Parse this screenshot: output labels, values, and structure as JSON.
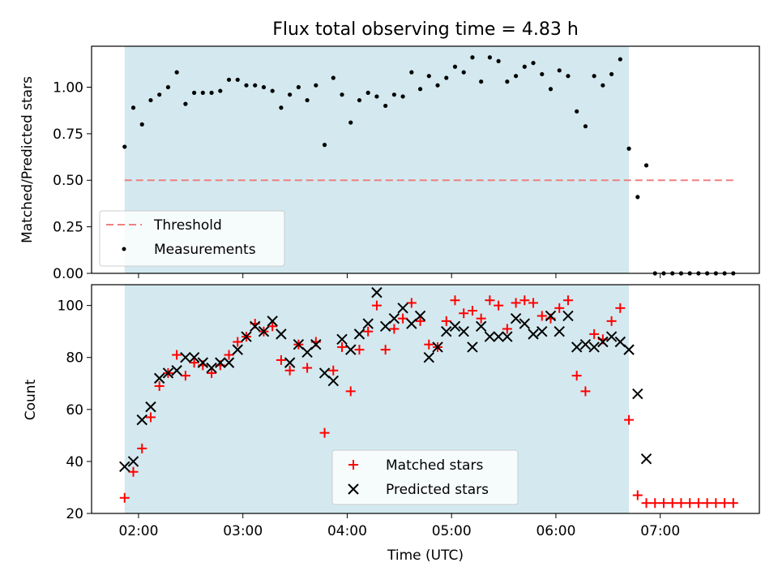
{
  "chart_data": [
    {
      "type": "scatter",
      "title": "Flux total observing time = 4.83 h",
      "xlabel": "",
      "ylabel": "Matched/Predicted stars",
      "ylim": [
        0,
        1.22
      ],
      "yticks": [
        "0.00",
        "0.25",
        "0.50",
        "0.75",
        "1.00"
      ],
      "shaded_region": {
        "from": "01:52",
        "to": "06:42",
        "color": "#d3e9ef"
      },
      "threshold": {
        "name": "Threshold",
        "value": 0.5,
        "from": "01:52",
        "to": "07:42",
        "color": "#f08080"
      },
      "legend_position": "lower-left",
      "series": [
        {
          "name": "Measurements",
          "marker": "dot",
          "color": "#000000",
          "points": [
            [
              "01:52",
              0.68
            ],
            [
              "01:57",
              0.89
            ],
            [
              "02:02",
              0.8
            ],
            [
              "02:07",
              0.93
            ],
            [
              "02:12",
              0.96
            ],
            [
              "02:17",
              1.0
            ],
            [
              "02:22",
              1.08
            ],
            [
              "02:27",
              0.91
            ],
            [
              "02:32",
              0.97
            ],
            [
              "02:37",
              0.97
            ],
            [
              "02:42",
              0.97
            ],
            [
              "02:47",
              0.98
            ],
            [
              "02:52",
              1.04
            ],
            [
              "02:57",
              1.04
            ],
            [
              "03:02",
              1.01
            ],
            [
              "03:07",
              1.01
            ],
            [
              "03:12",
              1.0
            ],
            [
              "03:17",
              0.98
            ],
            [
              "03:22",
              0.89
            ],
            [
              "03:27",
              0.96
            ],
            [
              "03:32",
              1.0
            ],
            [
              "03:37",
              0.93
            ],
            [
              "03:42",
              1.01
            ],
            [
              "03:47",
              0.69
            ],
            [
              "03:52",
              1.05
            ],
            [
              "03:57",
              0.96
            ],
            [
              "04:02",
              0.81
            ],
            [
              "04:07",
              0.93
            ],
            [
              "04:12",
              0.97
            ],
            [
              "04:17",
              0.95
            ],
            [
              "04:22",
              0.9
            ],
            [
              "04:27",
              0.96
            ],
            [
              "04:32",
              0.95
            ],
            [
              "04:37",
              1.08
            ],
            [
              "04:42",
              0.99
            ],
            [
              "04:47",
              1.06
            ],
            [
              "04:52",
              1.01
            ],
            [
              "04:57",
              1.05
            ],
            [
              "05:02",
              1.11
            ],
            [
              "05:07",
              1.08
            ],
            [
              "05:12",
              1.16
            ],
            [
              "05:17",
              1.03
            ],
            [
              "05:22",
              1.16
            ],
            [
              "05:27",
              1.14
            ],
            [
              "05:32",
              1.03
            ],
            [
              "05:37",
              1.06
            ],
            [
              "05:42",
              1.11
            ],
            [
              "05:47",
              1.13
            ],
            [
              "05:52",
              1.07
            ],
            [
              "05:57",
              0.99
            ],
            [
              "06:02",
              1.09
            ],
            [
              "06:07",
              1.06
            ],
            [
              "06:12",
              0.87
            ],
            [
              "06:17",
              0.79
            ],
            [
              "06:22",
              1.06
            ],
            [
              "06:27",
              1.01
            ],
            [
              "06:32",
              1.07
            ],
            [
              "06:37",
              1.15
            ],
            [
              "06:42",
              0.67
            ],
            [
              "06:47",
              0.41
            ],
            [
              "06:52",
              0.58
            ],
            [
              "06:57",
              0.0
            ],
            [
              "07:02",
              0.0
            ],
            [
              "07:07",
              0.0
            ],
            [
              "07:12",
              0.0
            ],
            [
              "07:17",
              0.0
            ],
            [
              "07:22",
              0.0
            ],
            [
              "07:27",
              0.0
            ],
            [
              "07:32",
              0.0
            ],
            [
              "07:37",
              0.0
            ],
            [
              "07:42",
              0.0
            ]
          ]
        }
      ]
    },
    {
      "type": "scatter",
      "title": "",
      "xlabel": "Time (UTC)",
      "ylabel": "Count",
      "xlim": [
        "01:33",
        "07:57"
      ],
      "xticks": [
        "02:00",
        "03:00",
        "04:00",
        "05:00",
        "06:00",
        "07:00"
      ],
      "ylim": [
        20,
        108
      ],
      "yticks": [
        20,
        40,
        60,
        80,
        100
      ],
      "shaded_region": {
        "from": "01:52",
        "to": "06:42",
        "color": "#d3e9ef"
      },
      "legend_position": "lower-center",
      "x": [
        "01:52",
        "01:57",
        "02:02",
        "02:07",
        "02:12",
        "02:17",
        "02:22",
        "02:27",
        "02:32",
        "02:37",
        "02:42",
        "02:47",
        "02:52",
        "02:57",
        "03:02",
        "03:07",
        "03:12",
        "03:17",
        "03:22",
        "03:27",
        "03:32",
        "03:37",
        "03:42",
        "03:47",
        "03:52",
        "03:57",
        "04:02",
        "04:07",
        "04:12",
        "04:17",
        "04:22",
        "04:27",
        "04:32",
        "04:37",
        "04:42",
        "04:47",
        "04:52",
        "04:57",
        "05:02",
        "05:07",
        "05:12",
        "05:17",
        "05:22",
        "05:27",
        "05:32",
        "05:37",
        "05:42",
        "05:47",
        "05:52",
        "05:57",
        "06:02",
        "06:07",
        "06:12",
        "06:17",
        "06:22",
        "06:27",
        "06:32",
        "06:37",
        "06:42",
        "06:47",
        "06:52",
        "06:57",
        "07:02",
        "07:07",
        "07:12",
        "07:17",
        "07:22",
        "07:27",
        "07:32",
        "07:37",
        "07:42"
      ],
      "series": [
        {
          "name": "Matched stars",
          "marker": "plus",
          "color": "#ff0000",
          "values": [
            26,
            36,
            45,
            57,
            69,
            74,
            81,
            73,
            78,
            77,
            74,
            77,
            81,
            86,
            88,
            93,
            90,
            92,
            79,
            75,
            85,
            76,
            86,
            51,
            75,
            84,
            67,
            83,
            90,
            100,
            83,
            91,
            95,
            101,
            94,
            85,
            84,
            94,
            102,
            97,
            98,
            95,
            102,
            100,
            91,
            101,
            102,
            101,
            96,
            95,
            99,
            102,
            73,
            67,
            89,
            87,
            94,
            99,
            56,
            27,
            24,
            24,
            24,
            24,
            24,
            24,
            24,
            24,
            24,
            24,
            24
          ]
        },
        {
          "name": "Predicted stars",
          "marker": "x",
          "color": "#000000",
          "values": [
            38,
            40,
            56,
            61,
            72,
            74,
            75,
            80,
            80,
            78,
            76,
            78,
            78,
            83,
            88,
            92,
            90,
            94,
            89,
            78,
            85,
            82,
            85,
            74,
            71,
            87,
            83,
            89,
            93,
            105,
            92,
            95,
            99,
            93,
            96,
            80,
            84,
            90,
            92,
            90,
            84,
            92,
            88,
            88,
            88,
            95,
            93,
            89,
            90,
            96,
            90,
            96,
            84,
            85,
            84,
            86,
            88,
            86,
            83,
            66,
            41,
            null,
            null,
            null,
            null,
            null,
            null,
            null,
            null,
            null,
            null
          ]
        }
      ]
    }
  ]
}
